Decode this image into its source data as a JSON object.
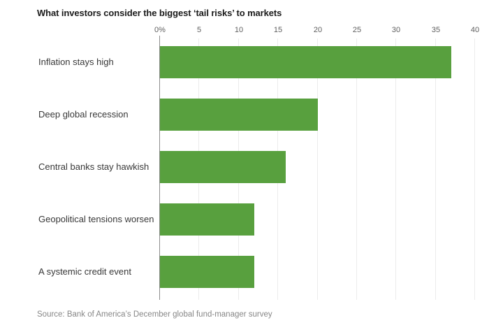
{
  "chart_data": {
    "type": "bar",
    "orientation": "horizontal",
    "title": "What investors consider the biggest ‘tail risks’ to markets",
    "categories": [
      "Inflation stays high",
      "Deep global recession",
      "Central banks stay hawkish",
      "Geopolitical tensions worsen",
      "A systemic credit event"
    ],
    "values": [
      37,
      20,
      16,
      12,
      12
    ],
    "xlabel": "",
    "ylabel": "",
    "xlim": [
      0,
      40
    ],
    "x_ticks": [
      0,
      5,
      10,
      15,
      20,
      25,
      30,
      35,
      40
    ],
    "x_tick_labels": [
      "0%",
      "5",
      "10",
      "15",
      "20",
      "25",
      "30",
      "35",
      "40"
    ],
    "grid": "vertical-gridlines-on",
    "legend": "none",
    "source": "Source: Bank of America’s December global fund-manager survey"
  },
  "colors": {
    "bar": "#58a03e",
    "title": "#1a1a1a",
    "label": "#383838",
    "tick": "#606060",
    "grid": "#ececec",
    "axis": "#8c8c8c",
    "source": "#878787",
    "background": "#ffffff"
  }
}
